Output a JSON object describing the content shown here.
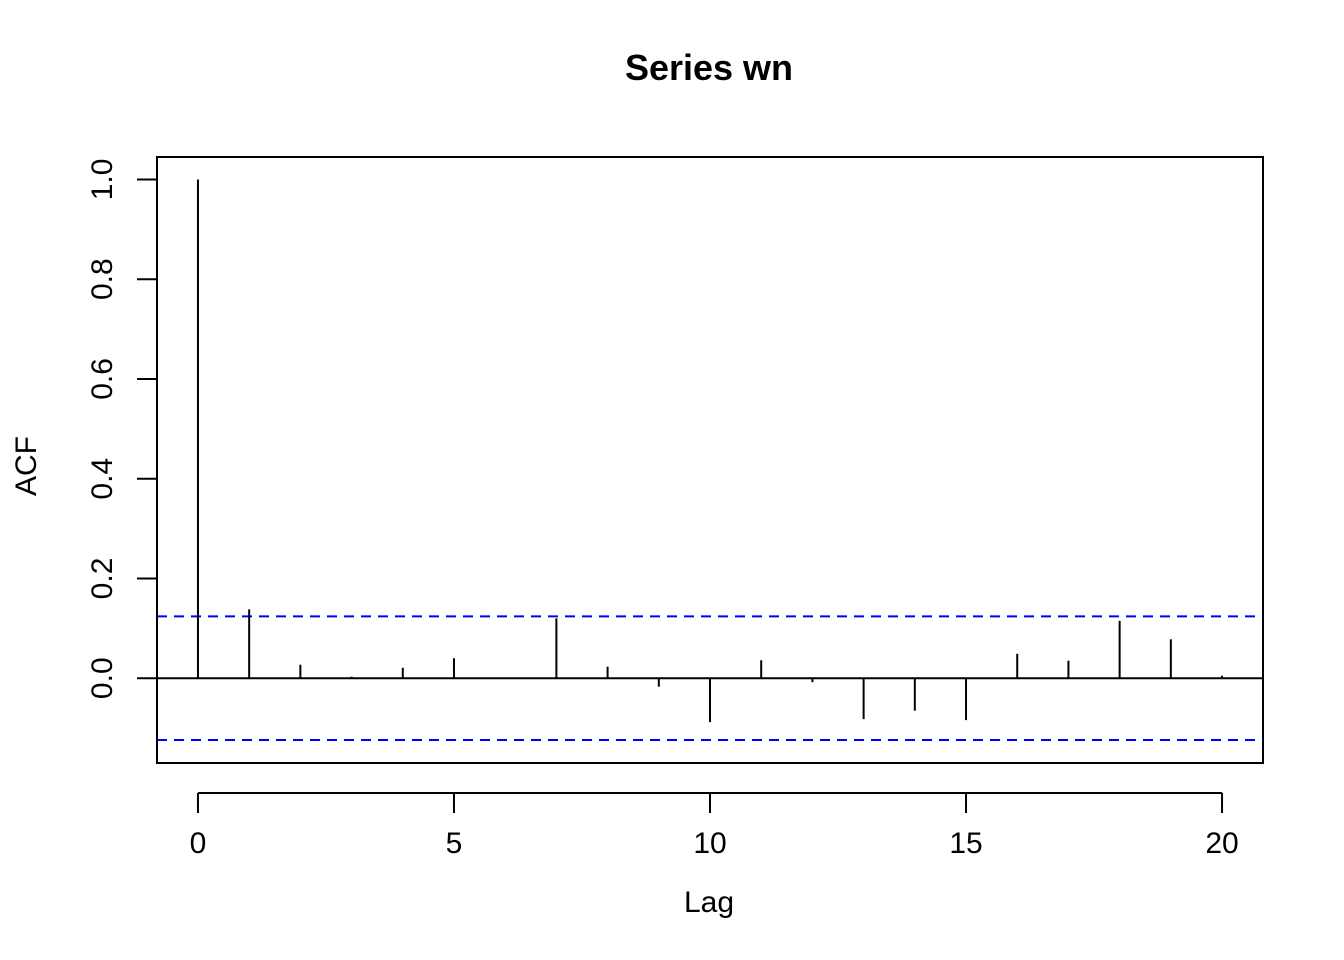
{
  "chart_data": {
    "type": "bar",
    "title": "Series  wn",
    "xlabel": "Lag",
    "ylabel": "ACF",
    "xlim": [
      -0.8,
      20.8
    ],
    "ylim": [
      -0.17,
      1.045
    ],
    "x_ticks": [
      0,
      5,
      10,
      15,
      20
    ],
    "x_tick_labels": [
      "0",
      "5",
      "10",
      "15",
      "20"
    ],
    "y_ticks": [
      0.0,
      0.2,
      0.4,
      0.6,
      0.8,
      1.0
    ],
    "y_tick_labels": [
      "0.0",
      "0.2",
      "0.4",
      "0.6",
      "0.8",
      "1.0"
    ],
    "lags": [
      0,
      1,
      2,
      3,
      4,
      5,
      6,
      7,
      8,
      9,
      10,
      11,
      12,
      13,
      14,
      15,
      16,
      17,
      18,
      19,
      20
    ],
    "acf": [
      1.0,
      0.138,
      0.027,
      0.003,
      0.021,
      0.04,
      0.0,
      0.12,
      0.023,
      -0.017,
      -0.088,
      0.036,
      -0.008,
      -0.082,
      -0.065,
      -0.084,
      0.049,
      0.035,
      0.115,
      0.078,
      0.005
    ],
    "confidence_bound": 0.124,
    "grid": false,
    "colors": {
      "bars": "#000000",
      "confidence_lines": "#0000ff",
      "axes": "#000000"
    }
  }
}
